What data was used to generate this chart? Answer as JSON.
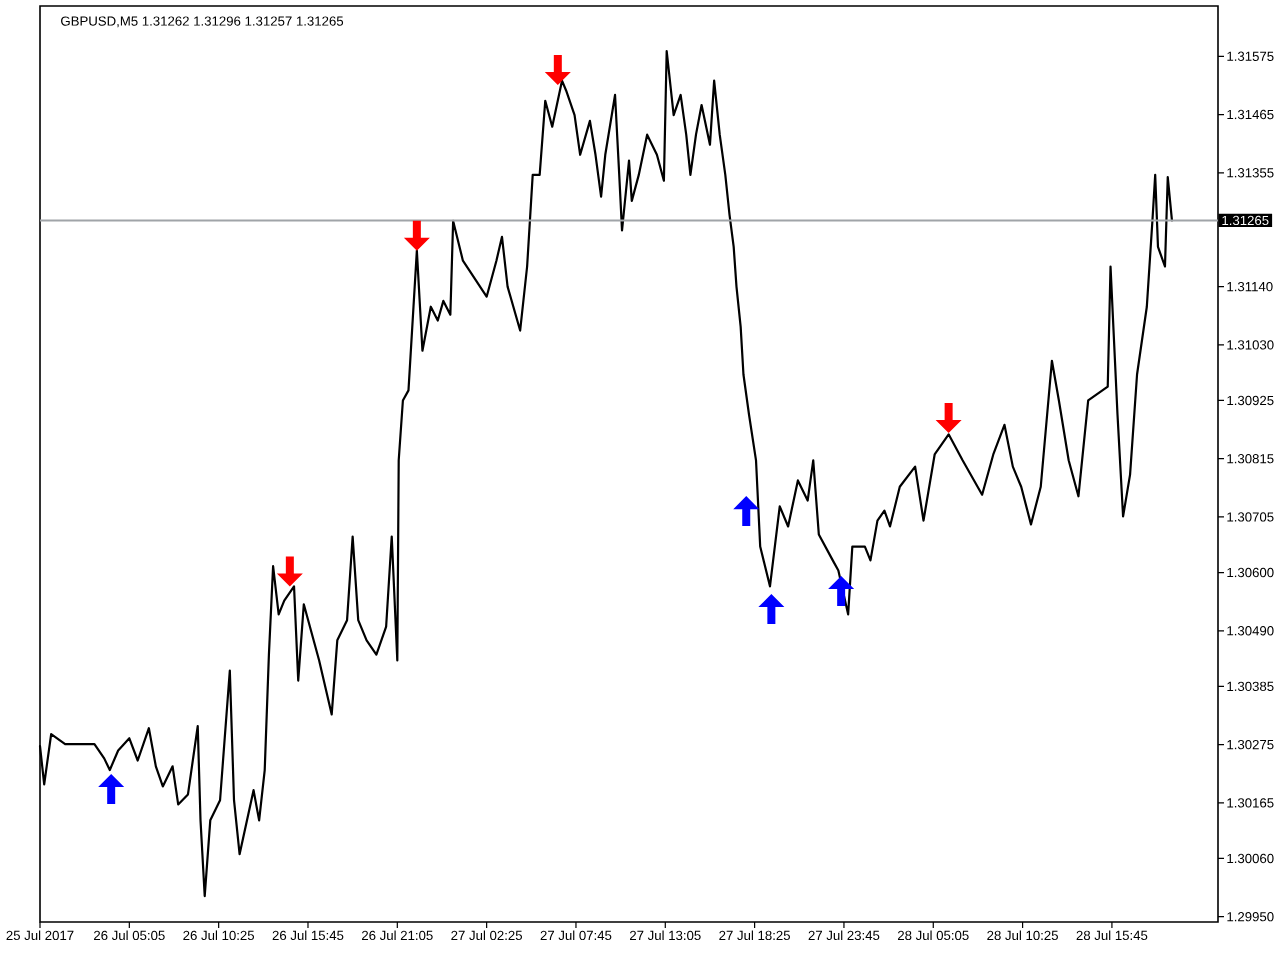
{
  "chart_data": {
    "type": "line",
    "title": "GBPUSD,M5  1.31262 1.31296 1.31257 1.31265",
    "xlim": [
      "2017-07-25T23:45",
      "2017-07-28T22:05"
    ],
    "xticks": [
      {
        "value": "2017-07-25T23:45",
        "label": "25 Jul 2017"
      },
      {
        "value": "2017-07-26T05:05",
        "label": "26 Jul 05:05"
      },
      {
        "value": "2017-07-26T10:25",
        "label": "26 Jul 10:25"
      },
      {
        "value": "2017-07-26T15:45",
        "label": "26 Jul 15:45"
      },
      {
        "value": "2017-07-26T21:05",
        "label": "26 Jul 21:05"
      },
      {
        "value": "2017-07-27T02:25",
        "label": "27 Jul 02:25"
      },
      {
        "value": "2017-07-27T07:45",
        "label": "27 Jul 07:45"
      },
      {
        "value": "2017-07-27T13:05",
        "label": "27 Jul 13:05"
      },
      {
        "value": "2017-07-27T18:25",
        "label": "27 Jul 18:25"
      },
      {
        "value": "2017-07-27T23:45",
        "label": "27 Jul 23:45"
      },
      {
        "value": "2017-07-28T05:05",
        "label": "28 Jul 05:05"
      },
      {
        "value": "2017-07-28T10:25",
        "label": "28 Jul 10:25"
      },
      {
        "value": "2017-07-28T15:45",
        "label": "28 Jul 15:45"
      }
    ],
    "ylim": [
      1.2994,
      1.3167
    ],
    "yticks": [
      1.31575,
      1.31465,
      1.31355,
      {
        "value": 1.3114,
        "label": "1.31140"
      },
      {
        "value": 1.3103,
        "label": "1.31030"
      },
      1.30925,
      1.30815,
      1.30705,
      {
        "value": 1.306,
        "label": "1.30600"
      },
      {
        "value": 1.3049,
        "label": "1.30490"
      },
      1.30385,
      1.30275,
      1.30165,
      {
        "value": 1.3006,
        "label": "1.30060"
      },
      {
        "value": 1.2995,
        "label": "1.29950"
      }
    ],
    "ref_lines": [
      {
        "axis": "y",
        "value": 1.31265,
        "label": "1.31265",
        "color": "#a0a4a8"
      }
    ],
    "series": [
      {
        "color": "#000000",
        "x": [
          "2017-07-25T23:45",
          "2017-07-26T00:00",
          "2017-07-26T00:25",
          "2017-07-26T01:15",
          "2017-07-26T03:00",
          "2017-07-26T03:35",
          "2017-07-26T03:55",
          "2017-07-26T04:25",
          "2017-07-26T05:05",
          "2017-07-26T05:35",
          "2017-07-26T06:15",
          "2017-07-26T06:40",
          "2017-07-26T07:05",
          "2017-07-26T07:40",
          "2017-07-26T08:00",
          "2017-07-26T08:35",
          "2017-07-26T09:10",
          "2017-07-26T09:20",
          "2017-07-26T09:35",
          "2017-07-26T09:55",
          "2017-07-26T10:30",
          "2017-07-26T11:05",
          "2017-07-26T11:20",
          "2017-07-26T11:40",
          "2017-07-26T12:30",
          "2017-07-26T12:50",
          "2017-07-26T13:10",
          "2017-07-26T13:25",
          "2017-07-26T13:40",
          "2017-07-26T14:00",
          "2017-07-26T14:20",
          "2017-07-26T14:55",
          "2017-07-26T15:10",
          "2017-07-26T15:30",
          "2017-07-26T16:25",
          "2017-07-26T17:10",
          "2017-07-26T17:30",
          "2017-07-26T18:05",
          "2017-07-26T18:25",
          "2017-07-26T18:45",
          "2017-07-26T19:15",
          "2017-07-26T19:50",
          "2017-07-26T20:25",
          "2017-07-26T20:45",
          "2017-07-26T21:05",
          "2017-07-26T21:10",
          "2017-07-26T21:25",
          "2017-07-26T21:45",
          "2017-07-26T22:00",
          "2017-07-26T22:15",
          "2017-07-26T22:35",
          "2017-07-26T23:05",
          "2017-07-26T23:30",
          "2017-07-26T23:50",
          "2017-07-27T00:15",
          "2017-07-27T00:25",
          "2017-07-27T01:00",
          "2017-07-27T02:25",
          "2017-07-27T03:00",
          "2017-07-27T03:20",
          "2017-07-27T03:40",
          "2017-07-27T04:25",
          "2017-07-27T04:50",
          "2017-07-27T05:10",
          "2017-07-27T05:35",
          "2017-07-27T05:55",
          "2017-07-27T06:20",
          "2017-07-27T06:55",
          "2017-07-27T07:10",
          "2017-07-27T07:40",
          "2017-07-27T08:00",
          "2017-07-27T08:35",
          "2017-07-27T08:55",
          "2017-07-27T09:15",
          "2017-07-27T09:30",
          "2017-07-27T10:05",
          "2017-07-27T10:20",
          "2017-07-27T10:30",
          "2017-07-27T10:55",
          "2017-07-27T11:05",
          "2017-07-27T11:30",
          "2017-07-27T12:00",
          "2017-07-27T12:35",
          "2017-07-27T13:00",
          "2017-07-27T13:10",
          "2017-07-27T13:35",
          "2017-07-27T14:00",
          "2017-07-27T14:20",
          "2017-07-27T14:35",
          "2017-07-27T14:55",
          "2017-07-27T15:15",
          "2017-07-27T15:45",
          "2017-07-27T16:00",
          "2017-07-27T16:20",
          "2017-07-27T16:40",
          "2017-07-27T16:55",
          "2017-07-27T17:10",
          "2017-07-27T17:20",
          "2017-07-27T17:35",
          "2017-07-27T17:45",
          "2017-07-27T18:05",
          "2017-07-27T18:30",
          "2017-07-27T18:45",
          "2017-07-27T19:20",
          "2017-07-27T19:55",
          "2017-07-27T20:25",
          "2017-07-27T21:00",
          "2017-07-27T21:35",
          "2017-07-27T21:55",
          "2017-07-27T22:15",
          "2017-07-27T23:05",
          "2017-07-27T23:25",
          "2017-07-28T00:00",
          "2017-07-28T00:15",
          "2017-07-28T01:00",
          "2017-07-28T01:20",
          "2017-07-28T01:45",
          "2017-07-28T02:10",
          "2017-07-28T02:30",
          "2017-07-28T03:05",
          "2017-07-28T04:00",
          "2017-07-28T04:30",
          "2017-07-28T05:10",
          "2017-07-28T06:00",
          "2017-07-28T06:50",
          "2017-07-28T08:00",
          "2017-07-28T08:40",
          "2017-07-28T09:20",
          "2017-07-28T09:50",
          "2017-07-28T10:20",
          "2017-07-28T10:55",
          "2017-07-28T11:30",
          "2017-07-28T12:10",
          "2017-07-28T12:35",
          "2017-07-28T13:10",
          "2017-07-28T13:45",
          "2017-07-28T14:20",
          "2017-07-28T15:30",
          "2017-07-28T15:40",
          "2017-07-28T16:05",
          "2017-07-28T16:25",
          "2017-07-28T16:50",
          "2017-07-28T17:15",
          "2017-07-28T17:50",
          "2017-07-28T18:10",
          "2017-07-28T18:20",
          "2017-07-28T18:30",
          "2017-07-28T18:55",
          "2017-07-28T19:05",
          "2017-07-28T19:20"
        ],
        "values": [
          1.30272,
          1.302,
          1.30295,
          1.30276,
          1.30276,
          1.30249,
          1.30227,
          1.30264,
          1.30287,
          1.30245,
          1.30306,
          1.30234,
          1.30196,
          1.30234,
          1.30162,
          1.30181,
          1.3031,
          1.30132,
          1.29989,
          1.30132,
          1.3017,
          1.30415,
          1.3017,
          1.30068,
          1.30189,
          1.30132,
          1.30227,
          1.30445,
          1.30612,
          1.30521,
          1.30547,
          1.30574,
          1.30396,
          1.3054,
          1.30434,
          1.30332,
          1.30472,
          1.3051,
          1.30668,
          1.3051,
          1.30472,
          1.30445,
          1.30498,
          1.30668,
          1.30434,
          1.30812,
          1.30925,
          1.30944,
          1.31076,
          1.31208,
          1.31019,
          1.31102,
          1.31076,
          1.31113,
          1.31087,
          1.31264,
          1.31189,
          1.31121,
          1.31189,
          1.31234,
          1.3114,
          1.31057,
          1.31178,
          1.31351,
          1.31351,
          1.31491,
          1.31442,
          1.31529,
          1.3151,
          1.31464,
          1.31389,
          1.31453,
          1.31389,
          1.3131,
          1.31389,
          1.31502,
          1.31351,
          1.31246,
          1.31378,
          1.31302,
          1.31351,
          1.31427,
          1.31389,
          1.3134,
          1.31585,
          1.31464,
          1.31502,
          1.31427,
          1.31351,
          1.31427,
          1.31483,
          1.31408,
          1.31529,
          1.31427,
          1.31351,
          1.31276,
          1.31215,
          1.3114,
          1.31064,
          1.30974,
          1.30898,
          1.30812,
          1.30649,
          1.30574,
          1.30725,
          1.30687,
          1.30774,
          1.30736,
          1.30812,
          1.30672,
          1.30623,
          1.30604,
          1.30521,
          1.30649,
          1.30649,
          1.30623,
          1.30698,
          1.30717,
          1.30687,
          1.30762,
          1.308,
          1.30698,
          1.30823,
          1.30861,
          1.30812,
          1.30747,
          1.30823,
          1.30879,
          1.308,
          1.30762,
          1.30691,
          1.30762,
          1.31,
          1.30925,
          1.30812,
          1.30744,
          1.30925,
          1.30951,
          1.31178,
          1.30898,
          1.30706,
          1.30785,
          1.30974,
          1.31102,
          1.31264,
          1.31351,
          1.31215,
          1.31178,
          1.31347,
          1.31265
        ]
      },
      {
        "type": "scatter",
        "color": "#ff0000",
        "marker": "triangle",
        "x": [
          "2017-07-26T14:40",
          "2017-07-26T22:15",
          "2017-07-27T06:40",
          "2017-07-28T06:00"
        ],
        "values": [
          1.30602,
          1.31236,
          1.31549,
          1.30892
        ]
      },
      {
        "type": "scatter",
        "color": "#0000ff",
        "marker": "triangle",
        "x": [
          "2017-07-26T04:00",
          "2017-07-27T17:55",
          "2017-07-27T19:25",
          "2017-07-27T23:35"
        ],
        "values": [
          1.30191,
          1.30716,
          1.30531,
          1.30565
        ]
      }
    ]
  }
}
